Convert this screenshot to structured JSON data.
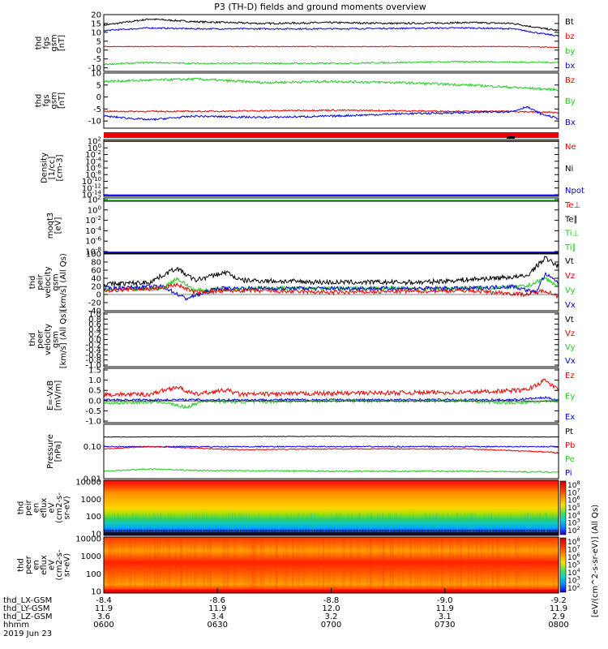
{
  "title": "P3 (TH-D) fields and ground moments overview",
  "colors": {
    "black": "#000000",
    "red": "#ee0000",
    "green": "#22cc22",
    "blue": "#0000dd"
  },
  "chart_data": [
    {
      "type": "line",
      "ylabel_lines": [
        "thd",
        "fgs",
        "gsm",
        "[nT]"
      ],
      "ylim": [
        -12,
        20
      ],
      "yticks": [
        20,
        15,
        10,
        5,
        0,
        -5,
        -10
      ],
      "legend": [
        {
          "label": "Bt",
          "color": "black"
        },
        {
          "label": "bz",
          "color": "red"
        },
        {
          "label": "by",
          "color": "green"
        },
        {
          "label": "bx",
          "color": "blue"
        }
      ],
      "series": [
        {
          "color": "black",
          "shape": [
            [
              0,
              14
            ],
            [
              0.1,
              17.5
            ],
            [
              0.2,
              16
            ],
            [
              0.35,
              15
            ],
            [
              0.5,
              15.5
            ],
            [
              0.65,
              15
            ],
            [
              0.8,
              15.5
            ],
            [
              0.9,
              15
            ],
            [
              0.97,
              12
            ],
            [
              1,
              11
            ]
          ],
          "noise": 0.5
        },
        {
          "color": "blue",
          "shape": [
            [
              0,
              11
            ],
            [
              0.1,
              12.5
            ],
            [
              0.2,
              12
            ],
            [
              0.5,
              12
            ],
            [
              0.8,
              12.5
            ],
            [
              0.9,
              12
            ],
            [
              0.97,
              9
            ],
            [
              1,
              8
            ]
          ],
          "noise": 0.4
        },
        {
          "color": "red",
          "shape": [
            [
              0,
              2
            ],
            [
              0.5,
              2
            ],
            [
              0.9,
              2
            ],
            [
              1,
              1.5
            ]
          ],
          "noise": 0.2
        },
        {
          "color": "green",
          "shape": [
            [
              0,
              -8
            ],
            [
              0.1,
              -7
            ],
            [
              0.2,
              -7.5
            ],
            [
              0.5,
              -7.5
            ],
            [
              0.8,
              -6.5
            ],
            [
              1,
              -7
            ]
          ],
          "noise": 0.4
        }
      ]
    },
    {
      "type": "line",
      "ylabel_lines": [
        "thd",
        "fgs",
        "gsm",
        "[nT]"
      ],
      "ylim": [
        -13,
        10
      ],
      "yticks": [
        10,
        5,
        0,
        -5,
        -10
      ],
      "legend": [
        {
          "label": "Bz",
          "color": "red"
        },
        {
          "label": "By",
          "color": "green"
        },
        {
          "label": "Bx",
          "color": "blue"
        }
      ],
      "series": [
        {
          "color": "green",
          "shape": [
            [
              0,
              6.5
            ],
            [
              0.1,
              7
            ],
            [
              0.2,
              7.5
            ],
            [
              0.35,
              6
            ],
            [
              0.5,
              6.5
            ],
            [
              0.65,
              6
            ],
            [
              0.8,
              5
            ],
            [
              0.9,
              4
            ],
            [
              0.95,
              3.5
            ],
            [
              1,
              3
            ]
          ],
          "noise": 0.5
        },
        {
          "color": "red",
          "shape": [
            [
              0,
              -6
            ],
            [
              0.2,
              -6
            ],
            [
              0.5,
              -5.5
            ],
            [
              0.8,
              -6
            ],
            [
              0.9,
              -6
            ],
            [
              1,
              -6.5
            ]
          ],
          "noise": 0.3
        },
        {
          "color": "blue",
          "shape": [
            [
              0,
              -8
            ],
            [
              0.1,
              -9.5
            ],
            [
              0.2,
              -8
            ],
            [
              0.35,
              -8.5
            ],
            [
              0.5,
              -8
            ],
            [
              0.65,
              -7
            ],
            [
              0.8,
              -6.5
            ],
            [
              0.9,
              -6
            ],
            [
              0.93,
              -4
            ],
            [
              0.96,
              -7
            ],
            [
              1,
              -9
            ]
          ],
          "noise": 0.4
        }
      ]
    },
    {
      "type": "line",
      "ylabel_lines": [
        "Density",
        "[1/cc]",
        "[cm-3]"
      ],
      "yticks": [
        "10^2",
        "10^0",
        "10^-2",
        "10^-4",
        "10^-6",
        "10^-8",
        "10^-10",
        "10^-12",
        "10^-14"
      ],
      "legend": [
        {
          "label": "Ne",
          "color": "red"
        },
        {
          "label": "Ni",
          "color": "black"
        },
        {
          "label": "Npot",
          "color": "blue"
        }
      ]
    },
    {
      "type": "line",
      "ylabel_lines": [
        "moqt3",
        "[eV]"
      ],
      "yticks": [
        "10^2",
        "10^0",
        "10^-2",
        "10^-4",
        "10^-6",
        "10^-8"
      ],
      "legend": [
        {
          "label": "Te⊥",
          "color": "red"
        },
        {
          "label": "Te∥",
          "color": "black"
        },
        {
          "label": "Ti⊥",
          "color": "green"
        },
        {
          "label": "Ti∥",
          "color": "green"
        }
      ]
    },
    {
      "type": "line",
      "ylabel_lines": [
        "thd",
        "peir",
        "velocity",
        "gsm",
        "[km/s] (All Qs)"
      ],
      "ylim": [
        -40,
        100
      ],
      "yticks": [
        100,
        80,
        60,
        40,
        20,
        0,
        -20,
        -40
      ],
      "legend": [
        {
          "label": "Vt",
          "color": "black"
        },
        {
          "label": "Vz",
          "color": "red"
        },
        {
          "label": "Vy",
          "color": "green"
        },
        {
          "label": "Vx",
          "color": "blue"
        }
      ],
      "series": [
        {
          "color": "green",
          "shape": [
            [
              0,
              10
            ],
            [
              0.13,
              15
            ],
            [
              0.16,
              40
            ],
            [
              0.2,
              10
            ],
            [
              0.3,
              15
            ],
            [
              0.5,
              15
            ],
            [
              0.8,
              15
            ],
            [
              0.93,
              20
            ],
            [
              0.97,
              40
            ],
            [
              1,
              20
            ]
          ],
          "noise": 5
        },
        {
          "color": "blue",
          "shape": [
            [
              0,
              15
            ],
            [
              0.13,
              20
            ],
            [
              0.18,
              -10
            ],
            [
              0.21,
              0
            ],
            [
              0.25,
              15
            ],
            [
              0.5,
              15
            ],
            [
              0.8,
              15
            ],
            [
              0.9,
              20
            ],
            [
              0.95,
              5
            ],
            [
              0.97,
              50
            ],
            [
              1,
              30
            ]
          ],
          "noise": 5
        },
        {
          "color": "red",
          "shape": [
            [
              0,
              10
            ],
            [
              0.13,
              15
            ],
            [
              0.16,
              25
            ],
            [
              0.2,
              5
            ],
            [
              0.3,
              10
            ],
            [
              0.5,
              5
            ],
            [
              0.8,
              10
            ],
            [
              0.93,
              0
            ],
            [
              0.97,
              10
            ],
            [
              1,
              -5
            ]
          ],
          "noise": 5
        },
        {
          "color": "black",
          "shape": [
            [
              0,
              25
            ],
            [
              0.1,
              30
            ],
            [
              0.16,
              65
            ],
            [
              0.2,
              35
            ],
            [
              0.27,
              55
            ],
            [
              0.3,
              35
            ],
            [
              0.5,
              30
            ],
            [
              0.7,
              30
            ],
            [
              0.85,
              40
            ],
            [
              0.93,
              45
            ],
            [
              0.97,
              90
            ],
            [
              1,
              70
            ]
          ],
          "noise": 6
        }
      ]
    },
    {
      "type": "line",
      "ylabel_lines": [
        "thd",
        "peer",
        "velocity",
        "gsm",
        "[km/s] (All Qs)"
      ],
      "ylim": [
        -1,
        1
      ],
      "yticks": [
        "1.0",
        "0.8",
        "0.6",
        "0.4",
        "0.2",
        "0.0",
        "-0.2",
        "-0.4",
        "-0.6",
        "-0.8",
        "-1.0"
      ],
      "legend": [
        {
          "label": "Vt",
          "color": "black"
        },
        {
          "label": "Vz",
          "color": "red"
        },
        {
          "label": "Vy",
          "color": "green"
        },
        {
          "label": "Vx",
          "color": "blue"
        }
      ]
    },
    {
      "type": "line",
      "ylabel_lines": [
        "E=-VxB",
        "[mV/m]"
      ],
      "ylim": [
        -1,
        1.5
      ],
      "yticks": [
        "1.5",
        "1.0",
        "0.5",
        "0.0",
        "-0.5",
        "-1.0"
      ],
      "legend": [
        {
          "label": "Ez",
          "color": "red"
        },
        {
          "label": "Ey",
          "color": "green"
        },
        {
          "label": "Ex",
          "color": "blue"
        }
      ],
      "series": [
        {
          "color": "blue",
          "shape": [
            [
              0,
              0.05
            ],
            [
              0.5,
              0.05
            ],
            [
              0.9,
              0.05
            ],
            [
              0.97,
              0.15
            ],
            [
              1,
              0.05
            ]
          ],
          "noise": 0.05
        },
        {
          "color": "green",
          "shape": [
            [
              0,
              -0.1
            ],
            [
              0.13,
              -0.05
            ],
            [
              0.18,
              -0.3
            ],
            [
              0.22,
              0
            ],
            [
              0.3,
              -0.05
            ],
            [
              0.5,
              0
            ],
            [
              0.8,
              0
            ],
            [
              0.9,
              -0.1
            ],
            [
              1,
              0
            ]
          ],
          "noise": 0.07
        },
        {
          "color": "red",
          "shape": [
            [
              0,
              0.3
            ],
            [
              0.1,
              0.3
            ],
            [
              0.16,
              0.65
            ],
            [
              0.2,
              0.3
            ],
            [
              0.27,
              0.5
            ],
            [
              0.3,
              0.3
            ],
            [
              0.5,
              0.35
            ],
            [
              0.8,
              0.4
            ],
            [
              0.93,
              0.5
            ],
            [
              0.97,
              0.95
            ],
            [
              1,
              0.5
            ]
          ],
          "noise": 0.1
        }
      ]
    },
    {
      "type": "line",
      "ylabel_lines": [
        "Pressure",
        "[nPa]"
      ],
      "log": true,
      "ylim": [
        0.01,
        0.5
      ],
      "yticks": [
        "0.10",
        "0.01"
      ],
      "legend": [
        {
          "label": "Pt",
          "color": "black"
        },
        {
          "label": "Pb",
          "color": "red"
        },
        {
          "label": "Pe",
          "color": "green"
        },
        {
          "label": "Pi",
          "color": "blue"
        }
      ],
      "series": [
        {
          "color": "black",
          "shape": [
            [
              0,
              0.2
            ],
            [
              0.5,
              0.21
            ],
            [
              1,
              0.2
            ]
          ],
          "noise": 0.003
        },
        {
          "color": "blue",
          "shape": [
            [
              0,
              0.1
            ],
            [
              0.5,
              0.1
            ],
            [
              1,
              0.1
            ]
          ],
          "noise": 0.004
        },
        {
          "color": "red",
          "shape": [
            [
              0,
              0.085
            ],
            [
              0.1,
              0.1
            ],
            [
              0.2,
              0.09
            ],
            [
              0.3,
              0.08
            ],
            [
              0.5,
              0.085
            ],
            [
              0.8,
              0.085
            ],
            [
              0.95,
              0.07
            ],
            [
              1,
              0.065
            ]
          ],
          "noise": 0.003
        },
        {
          "color": "green",
          "shape": [
            [
              0,
              0.017
            ],
            [
              0.1,
              0.02
            ],
            [
              0.2,
              0.018
            ],
            [
              0.5,
              0.017
            ],
            [
              0.8,
              0.017
            ],
            [
              1,
              0.016
            ]
          ],
          "noise": 0.0008
        }
      ]
    },
    {
      "type": "heatmap",
      "ylabel_lines": [
        "thd",
        "peir",
        "en",
        "eflux",
        "eV",
        "(cm2-s-",
        "sr-eV)"
      ],
      "yticks": [
        "10000",
        "1000",
        "100",
        "10"
      ],
      "colorbar_ticks": [
        "10^8",
        "10^7",
        "10^6",
        "10^5",
        "10^4",
        "10^3",
        "10^2"
      ]
    },
    {
      "type": "heatmap",
      "ylabel_lines": [
        "thd",
        "peer",
        "en",
        "eflux",
        "eV",
        "(cm2-s-",
        "sr-eV)"
      ],
      "yticks": [
        "10000",
        "1000",
        "100",
        "10"
      ],
      "colorbar_ticks": [
        "10^8",
        "10^7",
        "10^6",
        "10^5",
        "10^4",
        "10^3",
        "10^2"
      ]
    }
  ],
  "colorbar_label": "[eV/(cm^2-s-sr-eV)] (All Qs)",
  "x_axis": {
    "row_labels": [
      "thd_LX-GSM",
      "thd_LY-GSM",
      "thd_LZ-GSM",
      "hhmm",
      "2019 Jun 23"
    ],
    "ticks": [
      [
        "-8.4",
        "11.9",
        "3.6",
        "0600"
      ],
      [
        "-8.6",
        "11.9",
        "3.4",
        "0630"
      ],
      [
        "-8.8",
        "12.0",
        "3.2",
        "0700"
      ],
      [
        "-9.0",
        "11.9",
        "3.1",
        "0730"
      ],
      [
        "-9.2",
        "11.9",
        "2.9",
        "0800"
      ]
    ]
  }
}
